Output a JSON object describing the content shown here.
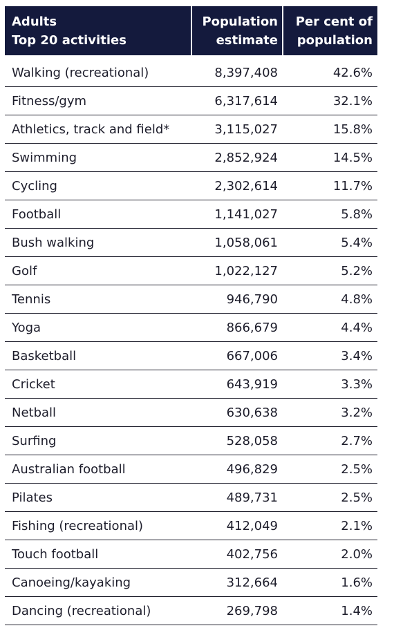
{
  "header": {
    "col1_line1": "Adults",
    "col1_line2": "Top 20 activities",
    "col2_line1": "Population",
    "col2_line2": "estimate",
    "col3_line1": "Per cent of",
    "col3_line2": "population"
  },
  "rows": [
    {
      "activity": "Walking (recreational)",
      "estimate": "8,397,408",
      "percent": "42.6%"
    },
    {
      "activity": "Fitness/gym",
      "estimate": "6,317,614",
      "percent": "32.1%"
    },
    {
      "activity": "Athletics, track and field*",
      "estimate": "3,115,027",
      "percent": "15.8%"
    },
    {
      "activity": "Swimming",
      "estimate": "2,852,924",
      "percent": "14.5%"
    },
    {
      "activity": "Cycling",
      "estimate": "2,302,614",
      "percent": "11.7%"
    },
    {
      "activity": "Football",
      "estimate": "1,141,027",
      "percent": "5.8%"
    },
    {
      "activity": "Bush walking",
      "estimate": "1,058,061",
      "percent": "5.4%"
    },
    {
      "activity": "Golf",
      "estimate": "1,022,127",
      "percent": "5.2%"
    },
    {
      "activity": "Tennis",
      "estimate": "946,790",
      "percent": "4.8%"
    },
    {
      "activity": "Yoga",
      "estimate": "866,679",
      "percent": "4.4%"
    },
    {
      "activity": "Basketball",
      "estimate": "667,006",
      "percent": "3.4%"
    },
    {
      "activity": "Cricket",
      "estimate": "643,919",
      "percent": "3.3%"
    },
    {
      "activity": "Netball",
      "estimate": "630,638",
      "percent": "3.2%"
    },
    {
      "activity": "Surfing",
      "estimate": "528,058",
      "percent": "2.7%"
    },
    {
      "activity": "Australian football",
      "estimate": "496,829",
      "percent": "2.5%"
    },
    {
      "activity": "Pilates",
      "estimate": "489,731",
      "percent": "2.5%"
    },
    {
      "activity": "Fishing (recreational)",
      "estimate": "412,049",
      "percent": "2.1%"
    },
    {
      "activity": "Touch football",
      "estimate": "402,756",
      "percent": "2.0%"
    },
    {
      "activity": "Canoeing/kayaking",
      "estimate": "312,664",
      "percent": "1.6%"
    },
    {
      "activity": "Dancing (recreational)",
      "estimate": "269,798",
      "percent": "1.4%"
    }
  ],
  "colors": {
    "header_bg": "#141a3d",
    "header_text": "#ffffff",
    "body_text": "#1d1d2b",
    "rule": "#1d1d2b"
  }
}
